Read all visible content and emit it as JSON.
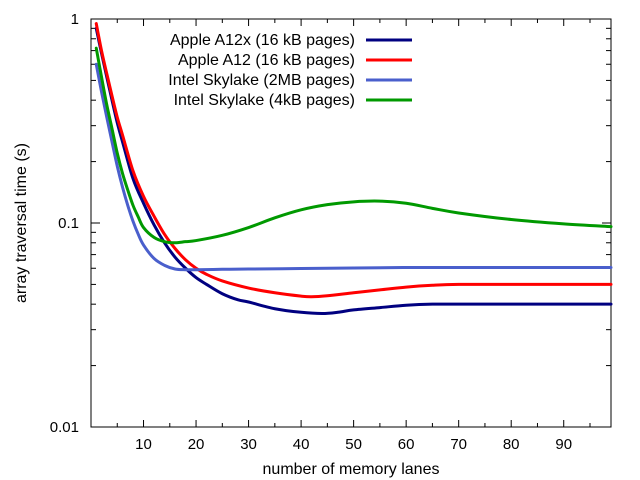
{
  "chart_data": {
    "type": "line",
    "title": "",
    "xlabel": "number of memory lanes",
    "ylabel": "array traversal time (s)",
    "xlim": [
      0,
      99
    ],
    "ylim": [
      0.01,
      1
    ],
    "yscale": "log",
    "x_ticks": [
      10,
      20,
      30,
      40,
      50,
      60,
      70,
      80,
      90
    ],
    "x_tick_labels": [
      "10",
      "20",
      "30",
      "40",
      "50",
      "60",
      "70",
      "80",
      "90"
    ],
    "y_ticks": [
      0.01,
      0.1,
      1
    ],
    "y_tick_labels": [
      "0.01",
      "0.1",
      "1"
    ],
    "grid": false,
    "legend_position": "top-center",
    "series": [
      {
        "name": "Apple A12x (16 kB pages)",
        "color": "#000080",
        "x": [
          1,
          2,
          3,
          4,
          5,
          6,
          8,
          10,
          12,
          14,
          16,
          18,
          20,
          22,
          25,
          28,
          30,
          35,
          40,
          44,
          47,
          50,
          55,
          60,
          65,
          70,
          80,
          90,
          99
        ],
        "y": [
          0.9,
          0.68,
          0.52,
          0.4,
          0.31,
          0.25,
          0.165,
          0.125,
          0.098,
          0.08,
          0.068,
          0.06,
          0.054,
          0.05,
          0.045,
          0.042,
          0.041,
          0.038,
          0.0365,
          0.036,
          0.0365,
          0.0375,
          0.0385,
          0.0395,
          0.04,
          0.04,
          0.04,
          0.04,
          0.04
        ]
      },
      {
        "name": "Apple A12 (16 kB pages)",
        "color": "#ff0000",
        "x": [
          1,
          2,
          3,
          4,
          5,
          6,
          8,
          10,
          12,
          14,
          16,
          18,
          20,
          22,
          25,
          30,
          35,
          40,
          42,
          45,
          50,
          55,
          60,
          65,
          70,
          80,
          90,
          99
        ],
        "y": [
          0.95,
          0.7,
          0.54,
          0.42,
          0.33,
          0.27,
          0.18,
          0.135,
          0.108,
          0.088,
          0.075,
          0.066,
          0.06,
          0.056,
          0.052,
          0.048,
          0.0455,
          0.0438,
          0.0435,
          0.044,
          0.0455,
          0.047,
          0.0485,
          0.0495,
          0.05,
          0.05,
          0.05,
          0.05
        ]
      },
      {
        "name": "Intel Skylake (2MB pages)",
        "color": "#4a5fcc",
        "x": [
          1,
          2,
          3,
          4,
          5,
          6,
          7,
          8,
          9,
          10,
          12,
          14,
          16,
          18,
          20,
          25,
          30,
          40,
          50,
          60,
          70,
          80,
          90,
          99
        ],
        "y": [
          0.6,
          0.44,
          0.33,
          0.25,
          0.19,
          0.15,
          0.122,
          0.102,
          0.088,
          0.078,
          0.067,
          0.062,
          0.0595,
          0.059,
          0.059,
          0.0593,
          0.0595,
          0.0598,
          0.0602,
          0.0605,
          0.0605,
          0.0605,
          0.0605,
          0.0605
        ]
      },
      {
        "name": "Intel Skylake (4kB pages)",
        "color": "#009900",
        "x": [
          1,
          2,
          3,
          4,
          5,
          6,
          7,
          8,
          9,
          10,
          12,
          14,
          16,
          18,
          20,
          25,
          30,
          35,
          40,
          45,
          50,
          55,
          60,
          65,
          70,
          80,
          90,
          99
        ],
        "y": [
          0.72,
          0.52,
          0.38,
          0.29,
          0.22,
          0.175,
          0.145,
          0.122,
          0.107,
          0.095,
          0.085,
          0.081,
          0.08,
          0.081,
          0.082,
          0.087,
          0.095,
          0.106,
          0.116,
          0.123,
          0.127,
          0.128,
          0.125,
          0.118,
          0.112,
          0.104,
          0.099,
          0.096
        ]
      }
    ]
  }
}
